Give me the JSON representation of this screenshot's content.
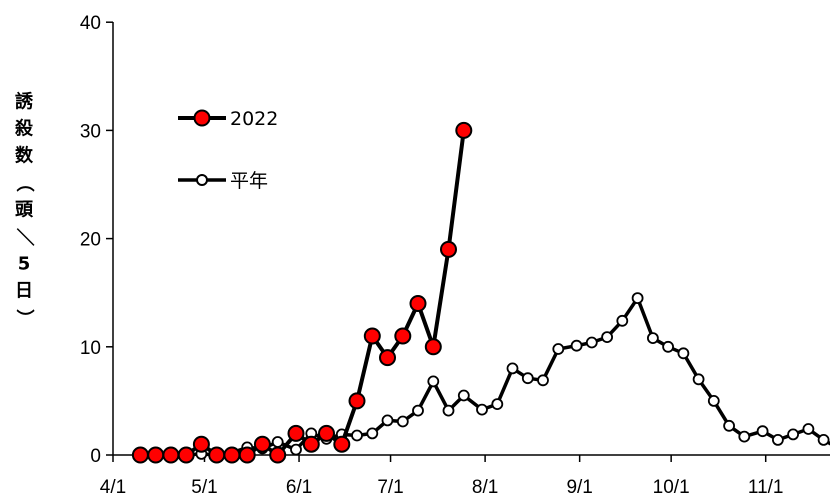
{
  "chart_data": {
    "type": "line",
    "title": "",
    "xlabel": "",
    "ylabel": "誘殺数（頭／5日）",
    "ylim": [
      0,
      40
    ],
    "yticks": [
      0,
      10,
      20,
      30,
      40
    ],
    "xlim": [
      "4/1",
      "11/30"
    ],
    "xticks": [
      {
        "label": "4/1",
        "day": 0
      },
      {
        "label": "5/1",
        "day": 30
      },
      {
        "label": "6/1",
        "day": 61
      },
      {
        "label": "7/1",
        "day": 91
      },
      {
        "label": "8/1",
        "day": 122
      },
      {
        "label": "9/1",
        "day": 153
      },
      {
        "label": "10/1",
        "day": 183
      },
      {
        "label": "11/1",
        "day": 214
      }
    ],
    "legend": "top-left",
    "grid": false,
    "series": [
      {
        "name": "2022",
        "color": "#ff0000",
        "marker": "filled-circle",
        "points": [
          {
            "x": "4/10",
            "y": 0
          },
          {
            "x": "4/15",
            "y": 0
          },
          {
            "x": "4/20",
            "y": 0
          },
          {
            "x": "4/25",
            "y": 0
          },
          {
            "x": "4/30",
            "y": 1
          },
          {
            "x": "5/5",
            "y": 0
          },
          {
            "x": "5/10",
            "y": 0
          },
          {
            "x": "5/15",
            "y": 0
          },
          {
            "x": "5/20",
            "y": 1
          },
          {
            "x": "5/25",
            "y": 0
          },
          {
            "x": "5/31",
            "y": 2
          },
          {
            "x": "6/5",
            "y": 1
          },
          {
            "x": "6/10",
            "y": 2
          },
          {
            "x": "6/15",
            "y": 1
          },
          {
            "x": "6/20",
            "y": 5
          },
          {
            "x": "6/25",
            "y": 11
          },
          {
            "x": "6/30",
            "y": 9
          },
          {
            "x": "7/5",
            "y": 11
          },
          {
            "x": "7/10",
            "y": 14
          },
          {
            "x": "7/15",
            "y": 10
          },
          {
            "x": "7/20",
            "y": 19
          },
          {
            "x": "7/25",
            "y": 30
          }
        ]
      },
      {
        "name": "平年",
        "color": "#ffffff",
        "marker": "open-circle",
        "points": [
          {
            "x": "4/10",
            "y": 0
          },
          {
            "x": "4/15",
            "y": 0
          },
          {
            "x": "4/20",
            "y": 0
          },
          {
            "x": "4/25",
            "y": 0
          },
          {
            "x": "4/30",
            "y": 0.1
          },
          {
            "x": "5/5",
            "y": 0
          },
          {
            "x": "5/10",
            "y": 0.2
          },
          {
            "x": "5/15",
            "y": 0.7
          },
          {
            "x": "5/20",
            "y": 0.6
          },
          {
            "x": "5/25",
            "y": 1.2
          },
          {
            "x": "5/31",
            "y": 0.5
          },
          {
            "x": "6/5",
            "y": 2.0
          },
          {
            "x": "6/10",
            "y": 1.5
          },
          {
            "x": "6/15",
            "y": 1.9
          },
          {
            "x": "6/20",
            "y": 1.8
          },
          {
            "x": "6/25",
            "y": 2.0
          },
          {
            "x": "6/30",
            "y": 3.2
          },
          {
            "x": "7/5",
            "y": 3.1
          },
          {
            "x": "7/10",
            "y": 4.1
          },
          {
            "x": "7/15",
            "y": 6.8
          },
          {
            "x": "7/20",
            "y": 4.1
          },
          {
            "x": "7/25",
            "y": 5.5
          },
          {
            "x": "7/31",
            "y": 4.2
          },
          {
            "x": "8/5",
            "y": 4.7
          },
          {
            "x": "8/10",
            "y": 8.0
          },
          {
            "x": "8/15",
            "y": 7.1
          },
          {
            "x": "8/20",
            "y": 6.9
          },
          {
            "x": "8/25",
            "y": 9.8
          },
          {
            "x": "8/31",
            "y": 10.1
          },
          {
            "x": "9/5",
            "y": 10.4
          },
          {
            "x": "9/10",
            "y": 10.9
          },
          {
            "x": "9/15",
            "y": 12.4
          },
          {
            "x": "9/20",
            "y": 14.5
          },
          {
            "x": "9/25",
            "y": 10.8
          },
          {
            "x": "9/30",
            "y": 10.0
          },
          {
            "x": "10/5",
            "y": 9.4
          },
          {
            "x": "10/10",
            "y": 7.0
          },
          {
            "x": "10/15",
            "y": 5.0
          },
          {
            "x": "10/20",
            "y": 2.7
          },
          {
            "x": "10/25",
            "y": 1.7
          },
          {
            "x": "10/31",
            "y": 2.2
          },
          {
            "x": "11/5",
            "y": 1.4
          },
          {
            "x": "11/10",
            "y": 1.9
          },
          {
            "x": "11/15",
            "y": 2.4
          },
          {
            "x": "11/20",
            "y": 1.4
          },
          {
            "x": "11/25",
            "y": 0.6
          }
        ]
      }
    ]
  }
}
